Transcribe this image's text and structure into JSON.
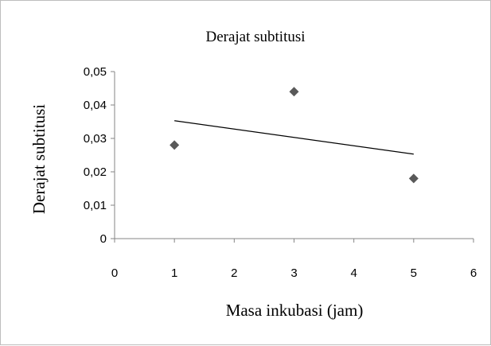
{
  "chart_data": {
    "type": "scatter",
    "title": "Derajat subtitusi",
    "xlabel": "Masa inkubasi (jam)",
    "ylabel": "Derajat subtitusi",
    "xlim": [
      0,
      6
    ],
    "ylim": [
      0,
      0.05
    ],
    "x_ticks": [
      "0",
      "1",
      "2",
      "3",
      "4",
      "5",
      "6"
    ],
    "y_ticks": [
      "0",
      "0,01",
      "0,02",
      "0,03",
      "0,04",
      "0,05"
    ],
    "x": [
      1,
      3,
      5
    ],
    "y": [
      0.028,
      0.044,
      0.018
    ],
    "trendline": {
      "type": "linear",
      "x": [
        1,
        5
      ],
      "y": [
        0.0353,
        0.0253
      ]
    },
    "grid": false,
    "legend": "none",
    "marker": "diamond",
    "marker_color": "#595959",
    "line_color": "#000000",
    "axis_color": "#868686"
  }
}
